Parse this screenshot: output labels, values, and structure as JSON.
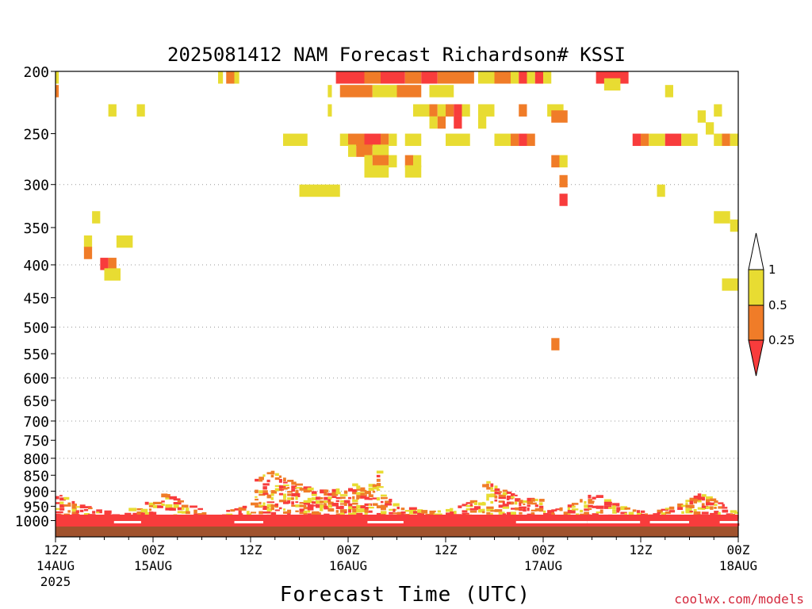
{
  "chart_data": {
    "type": "heatmap",
    "title": "2025081412 NAM Forecast Richardson# KSSI",
    "xlabel": "Forecast Time (UTC)",
    "watermark": "coolwx.com/models",
    "x_range_hours": [
      0,
      84
    ],
    "y_range_hpa": [
      200,
      1050
    ],
    "y_ticks": [
      200,
      250,
      300,
      350,
      400,
      450,
      500,
      550,
      600,
      650,
      700,
      750,
      800,
      850,
      900,
      950,
      1000
    ],
    "y_gridlines": [
      300,
      400,
      500,
      600,
      700,
      800,
      900
    ],
    "x_ticks": [
      {
        "hour": 0,
        "line1": "12Z",
        "line2": "14AUG",
        "line3": "2025"
      },
      {
        "hour": 12,
        "line1": "00Z",
        "line2": "15AUG",
        "line3": ""
      },
      {
        "hour": 24,
        "line1": "12Z",
        "line2": "",
        "line3": ""
      },
      {
        "hour": 36,
        "line1": "00Z",
        "line2": "16AUG",
        "line3": ""
      },
      {
        "hour": 48,
        "line1": "12Z",
        "line2": "",
        "line3": ""
      },
      {
        "hour": 60,
        "line1": "00Z",
        "line2": "17AUG",
        "line3": ""
      },
      {
        "hour": 72,
        "line1": "12Z",
        "line2": "",
        "line3": ""
      },
      {
        "hour": 84,
        "line1": "00Z",
        "line2": "18AUG",
        "line3": ""
      }
    ],
    "colorbar": {
      "levels": [
        "0.25",
        "0.5",
        "1"
      ],
      "colors": {
        "lt_0.25": "#f83c3c",
        "0.25_0.5": "#f07c28",
        "0.5_1": "#e8dc32",
        "gt_1": "#ffffff"
      }
    },
    "ground_color": "#a0522d",
    "cell_data": [
      [
        0,
        200,
        0.4,
        "y"
      ],
      [
        0,
        210,
        0.4,
        "o"
      ],
      [
        6.5,
        225,
        1,
        "y"
      ],
      [
        10,
        225,
        1,
        "y"
      ],
      [
        20,
        200,
        0.6,
        "y"
      ],
      [
        21,
        200,
        1,
        "o"
      ],
      [
        22,
        200,
        0.6,
        "y"
      ],
      [
        28,
        250,
        3,
        "y"
      ],
      [
        30,
        300,
        5,
        "y"
      ],
      [
        33.5,
        210,
        0.5,
        "y"
      ],
      [
        33.5,
        225,
        0.5,
        "y"
      ],
      [
        34.5,
        200,
        4,
        "r"
      ],
      [
        38,
        200,
        2,
        "o"
      ],
      [
        40,
        200,
        3,
        "r"
      ],
      [
        43,
        200,
        2,
        "o"
      ],
      [
        45,
        200,
        2,
        "r"
      ],
      [
        47,
        200,
        3,
        "o"
      ],
      [
        50,
        200,
        1.5,
        "o"
      ],
      [
        52,
        200,
        2,
        "y"
      ],
      [
        54,
        200,
        2,
        "o"
      ],
      [
        56,
        200,
        1,
        "y"
      ],
      [
        57,
        200,
        1,
        "r"
      ],
      [
        58,
        200,
        1,
        "y"
      ],
      [
        59,
        200,
        1,
        "r"
      ],
      [
        60,
        200,
        1,
        "y"
      ],
      [
        35,
        210,
        4,
        "o"
      ],
      [
        39,
        210,
        3,
        "y"
      ],
      [
        42,
        210,
        3,
        "o"
      ],
      [
        46,
        210,
        3,
        "y"
      ],
      [
        44,
        225,
        2,
        "y"
      ],
      [
        46,
        225,
        1,
        "o"
      ],
      [
        47,
        225,
        1,
        "y"
      ],
      [
        48,
        225,
        1,
        "o"
      ],
      [
        49,
        225,
        1,
        "r"
      ],
      [
        50,
        225,
        1,
        "y"
      ],
      [
        52,
        225,
        2,
        "y"
      ],
      [
        57,
        225,
        1,
        "o"
      ],
      [
        46,
        235,
        1,
        "y"
      ],
      [
        47,
        235,
        1,
        "o"
      ],
      [
        49,
        235,
        1,
        "r"
      ],
      [
        52,
        235,
        1,
        "y"
      ],
      [
        35,
        250,
        1,
        "y"
      ],
      [
        36,
        250,
        2,
        "o"
      ],
      [
        38,
        250,
        2,
        "r"
      ],
      [
        40,
        250,
        1,
        "o"
      ],
      [
        41,
        250,
        1,
        "y"
      ],
      [
        43,
        250,
        2,
        "y"
      ],
      [
        48,
        250,
        3,
        "y"
      ],
      [
        54,
        250,
        2,
        "y"
      ],
      [
        56,
        250,
        1,
        "o"
      ],
      [
        57,
        250,
        1,
        "r"
      ],
      [
        58,
        250,
        1,
        "o"
      ],
      [
        36,
        260,
        1,
        "y"
      ],
      [
        37,
        260,
        2,
        "o"
      ],
      [
        39,
        260,
        2,
        "y"
      ],
      [
        38,
        270,
        1,
        "y"
      ],
      [
        39,
        270,
        2,
        "o"
      ],
      [
        41,
        270,
        1,
        "y"
      ],
      [
        43,
        270,
        1,
        "o"
      ],
      [
        44,
        270,
        1,
        "y"
      ],
      [
        38,
        280,
        3,
        "y"
      ],
      [
        43,
        280,
        2,
        "y"
      ],
      [
        60.5,
        225,
        2,
        "y"
      ],
      [
        61,
        230,
        2,
        "o"
      ],
      [
        61,
        270,
        1,
        "o"
      ],
      [
        62,
        270,
        1,
        "y"
      ],
      [
        62,
        290,
        1,
        "o"
      ],
      [
        62,
        310,
        1,
        "r"
      ],
      [
        66.5,
        200,
        4,
        "r"
      ],
      [
        67.5,
        205,
        2,
        "y"
      ],
      [
        75,
        210,
        1,
        "y"
      ],
      [
        71,
        250,
        1,
        "r"
      ],
      [
        72,
        250,
        1,
        "o"
      ],
      [
        73,
        250,
        2,
        "y"
      ],
      [
        75,
        250,
        2,
        "r"
      ],
      [
        77,
        250,
        2,
        "y"
      ],
      [
        79,
        230,
        1,
        "y"
      ],
      [
        80,
        240,
        1,
        "y"
      ],
      [
        81,
        225,
        1,
        "y"
      ],
      [
        81,
        250,
        1,
        "y"
      ],
      [
        82,
        250,
        1,
        "o"
      ],
      [
        83,
        250,
        1,
        "y"
      ],
      [
        74,
        300,
        1,
        "y"
      ],
      [
        81,
        330,
        2,
        "y"
      ],
      [
        83,
        340,
        1,
        "y"
      ],
      [
        4.5,
        330,
        1,
        "y"
      ],
      [
        3.5,
        360,
        1,
        "y"
      ],
      [
        3.5,
        375,
        1,
        "o"
      ],
      [
        7.5,
        360,
        2,
        "y"
      ],
      [
        5.5,
        390,
        1,
        "r"
      ],
      [
        6.5,
        390,
        1,
        "o"
      ],
      [
        6,
        405,
        2,
        "y"
      ],
      [
        82,
        420,
        2,
        "y"
      ],
      [
        61,
        520,
        1,
        "o"
      ]
    ]
  }
}
